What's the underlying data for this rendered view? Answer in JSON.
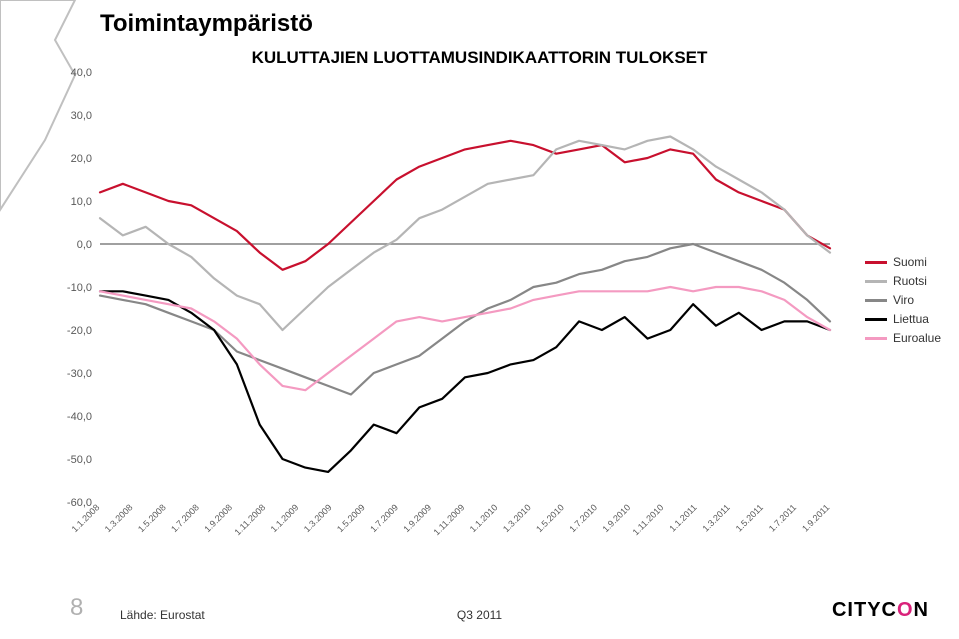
{
  "title": "Toimintaympäristö",
  "chart": {
    "type": "line",
    "title": "KULUTTAJIEN LUOTTAMUSINDIKAATTORIN TULOKSET",
    "background_color": "#ffffff",
    "ylim": [
      -60,
      40
    ],
    "ytick_step": 10,
    "y_ticks": [
      "40,0",
      "30,0",
      "20,0",
      "10,0",
      "0,0",
      "-10,0",
      "-20,0",
      "-30,0",
      "-40,0",
      "-50,0",
      "-60,0"
    ],
    "x_labels": [
      "1.1.2008",
      "1.3.2008",
      "1.5.2008",
      "1.7.2008",
      "1.9.2008",
      "1.11.2008",
      "1.1.2009",
      "1.3.2009",
      "1.5.2009",
      "1.7.2009",
      "1.9.2009",
      "1.11.2009",
      "1.1.2010",
      "1.3.2010",
      "1.5.2010",
      "1.7.2010",
      "1.9.2010",
      "1.11.2010",
      "1.1.2011",
      "1.3.2011",
      "1.5.2011",
      "1.7.2011",
      "1.9.2011"
    ],
    "line_width": 2.2,
    "grid_color": "#d9d9d9",
    "axis_color": "#808080",
    "series": [
      {
        "name": "Suomi",
        "label": "Suomi",
        "color": "#c8102e",
        "data": [
          12,
          14,
          12,
          10,
          9,
          6,
          3,
          -2,
          -6,
          -4,
          0,
          5,
          10,
          15,
          18,
          20,
          22,
          23,
          24,
          23,
          21,
          22,
          23,
          19,
          20,
          22,
          21,
          15,
          12,
          10,
          8,
          2,
          -1
        ]
      },
      {
        "name": "Ruotsi",
        "label": "Ruotsi",
        "color": "#b5b5b5",
        "data": [
          6,
          2,
          4,
          0,
          -3,
          -8,
          -12,
          -14,
          -20,
          -15,
          -10,
          -6,
          -2,
          1,
          6,
          8,
          11,
          14,
          15,
          16,
          22,
          24,
          23,
          22,
          24,
          25,
          22,
          18,
          15,
          12,
          8,
          2,
          -2
        ]
      },
      {
        "name": "Viro",
        "label": "Viro",
        "color": "#878787",
        "data": [
          -12,
          -13,
          -14,
          -16,
          -18,
          -20,
          -25,
          -27,
          -29,
          -31,
          -33,
          -35,
          -30,
          -28,
          -26,
          -22,
          -18,
          -15,
          -13,
          -10,
          -9,
          -7,
          -6,
          -4,
          -3,
          -1,
          0,
          -2,
          -4,
          -6,
          -9,
          -13,
          -18
        ]
      },
      {
        "name": "Liettua",
        "label": "Liettua",
        "color": "#000000",
        "data": [
          -11,
          -11,
          -12,
          -13,
          -16,
          -20,
          -28,
          -42,
          -50,
          -52,
          -53,
          -48,
          -42,
          -44,
          -38,
          -36,
          -31,
          -30,
          -28,
          -27,
          -24,
          -18,
          -20,
          -17,
          -22,
          -20,
          -14,
          -19,
          -16,
          -20,
          -18,
          -18,
          -20
        ]
      },
      {
        "name": "Euroalue",
        "label": "Euroalue",
        "color": "#f49ac1",
        "data": [
          -11,
          -12,
          -13,
          -14,
          -15,
          -18,
          -22,
          -28,
          -33,
          -34,
          -30,
          -26,
          -22,
          -18,
          -17,
          -18,
          -17,
          -16,
          -15,
          -13,
          -12,
          -11,
          -11,
          -11,
          -11,
          -10,
          -11,
          -10,
          -10,
          -11,
          -13,
          -17,
          -20
        ]
      }
    ]
  },
  "footer": {
    "page_number": "8",
    "source": "Lähde: Eurostat",
    "center": "Q3 2011",
    "logo_text": "CITYCON"
  },
  "deco_color": "#c0c0c0"
}
